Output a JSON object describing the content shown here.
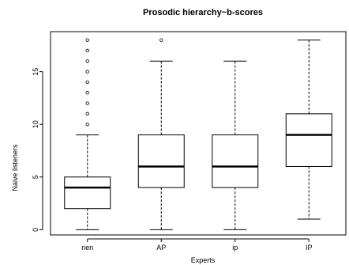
{
  "chart_data": {
    "type": "boxplot",
    "title": "Prosodic hierarchy~b-scores",
    "xlabel": "Experts",
    "ylabel": "Naive listeners",
    "ylim": [
      -0.5,
      18.8
    ],
    "yticks": [
      0,
      5,
      10,
      15
    ],
    "grid": false,
    "categories": [
      "rien",
      "AP",
      "ip",
      "IP"
    ],
    "boxes": [
      {
        "category": "rien",
        "whisker_low": 0,
        "q1": 2,
        "median": 4,
        "q3": 5,
        "whisker_high": 9,
        "outliers": [
          10,
          11,
          12,
          13,
          14,
          15,
          16,
          17,
          18
        ]
      },
      {
        "category": "AP",
        "whisker_low": 0,
        "q1": 4,
        "median": 6,
        "q3": 9,
        "whisker_high": 16,
        "outliers": [
          18
        ]
      },
      {
        "category": "ip",
        "whisker_low": 0,
        "q1": 4,
        "median": 6,
        "q3": 9,
        "whisker_high": 16,
        "outliers": []
      },
      {
        "category": "IP",
        "whisker_low": 1,
        "q1": 6,
        "median": 9,
        "q3": 11,
        "whisker_high": 18,
        "outliers": []
      }
    ]
  }
}
